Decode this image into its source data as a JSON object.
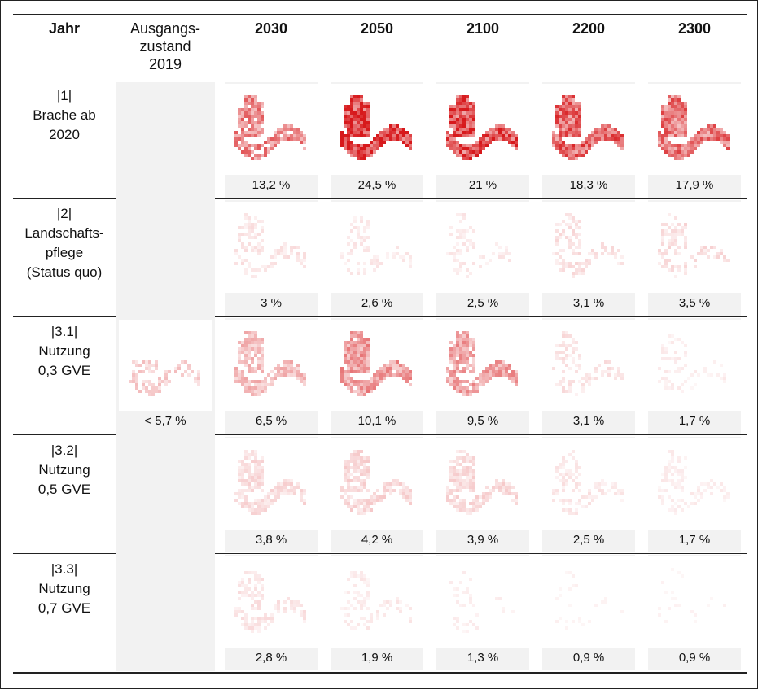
{
  "header": {
    "jahr": "Jahr",
    "ausgangszustand": [
      "Ausgangs-",
      "zustand",
      "2019"
    ],
    "years": [
      "2030",
      "2050",
      "2100",
      "2200",
      "2300"
    ]
  },
  "baseline": {
    "value": "< 5,7 %",
    "intensity": 0.22
  },
  "rows": [
    {
      "label": [
        "|1|",
        "Brache ab",
        "2020"
      ],
      "values": [
        "13,2 %",
        "24,5 %",
        "21 %",
        "18,3 %",
        "17,9 %"
      ],
      "intensity": [
        0.55,
        0.95,
        0.85,
        0.7,
        0.62
      ],
      "coverage": [
        0.85,
        1,
        1,
        1,
        1
      ]
    },
    {
      "label": [
        "|2|",
        "Landschafts-",
        "pflege",
        "(Status quo)"
      ],
      "values": [
        "3 %",
        "2,6 %",
        "2,5 %",
        "3,1 %",
        "3,5 %"
      ],
      "intensity": [
        0.12,
        0.1,
        0.1,
        0.14,
        0.15
      ],
      "coverage": [
        0.5,
        0.4,
        0.35,
        0.45,
        0.5
      ]
    },
    {
      "label": [
        "|3.1|",
        "Nutzung",
        "0,3 GVE"
      ],
      "values": [
        "6,5 %",
        "10,1 %",
        "9,5 %",
        "3,1 %",
        "1,7 %"
      ],
      "intensity": [
        0.3,
        0.45,
        0.42,
        0.13,
        0.08
      ],
      "coverage": [
        0.85,
        0.95,
        0.9,
        0.45,
        0.3
      ]
    },
    {
      "label": [
        "|3.2|",
        "Nutzung",
        "0,5 GVE"
      ],
      "values": [
        "3,8 %",
        "4,2 %",
        "3,9 %",
        "2,5 %",
        "1,7 %"
      ],
      "intensity": [
        0.16,
        0.18,
        0.17,
        0.11,
        0.08
      ],
      "coverage": [
        0.8,
        0.8,
        0.75,
        0.5,
        0.45
      ]
    },
    {
      "label": [
        "|3.3|",
        "Nutzung",
        "0,7 GVE"
      ],
      "values": [
        "2,8 %",
        "1,9 %",
        "1,3 %",
        "0,9 %",
        "0,9 %"
      ],
      "intensity": [
        0.12,
        0.09,
        0.07,
        0.05,
        0.05
      ],
      "coverage": [
        0.55,
        0.4,
        0.2,
        0.12,
        0.12
      ]
    }
  ],
  "colors": {
    "map_red": "#d7191c",
    "cell_gray": "#f2f2f2",
    "rule": "#222222"
  }
}
